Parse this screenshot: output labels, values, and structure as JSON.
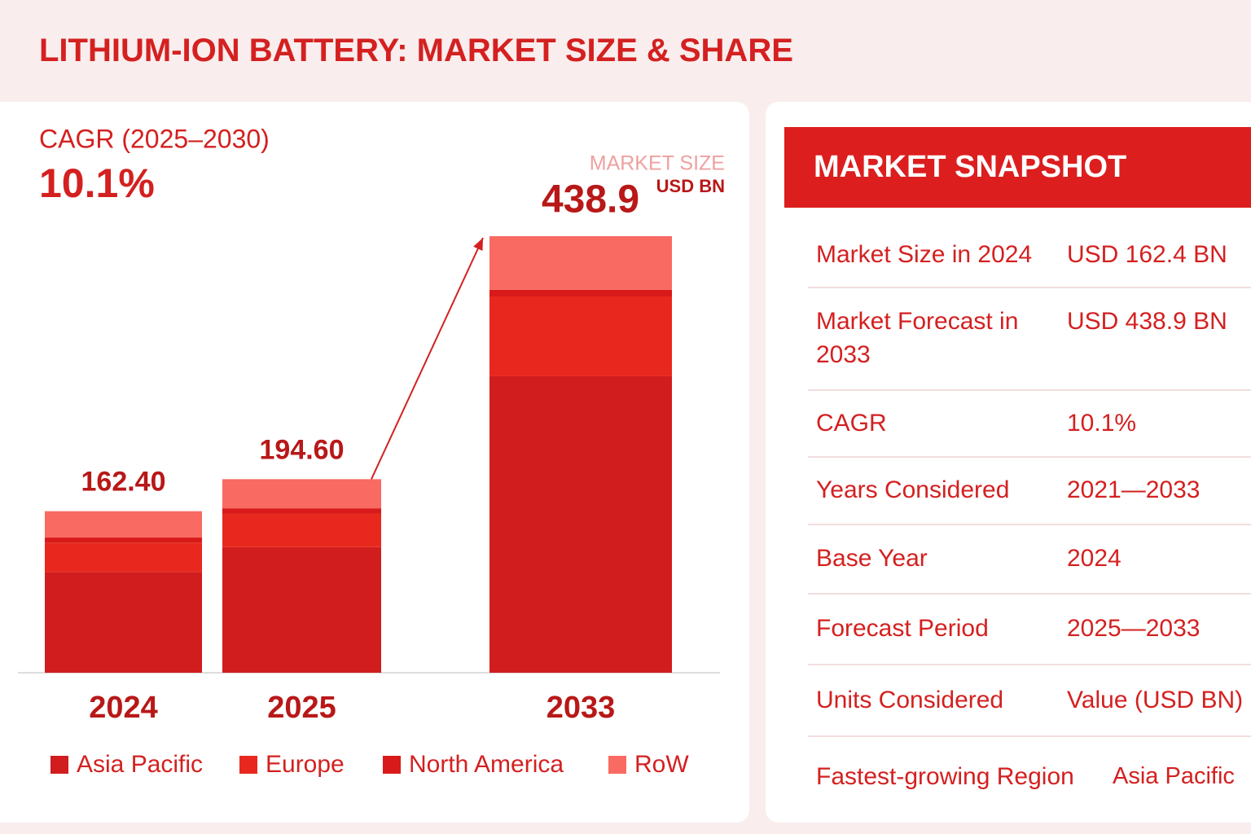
{
  "header": {
    "title": "LITHIUM-ION BATTERY: MARKET SIZE & SHARE"
  },
  "chart_data": {
    "type": "stacked_bar",
    "cagr_label": "CAGR (2025–2030)",
    "cagr": "10.1%",
    "market_size_label": "MARKET SIZE",
    "unit": "USD BN",
    "categories": [
      "2024",
      "2025",
      "2033"
    ],
    "series": [
      {
        "name": "Asia Pacific",
        "color": "#d11d1d",
        "values": [
          101.4,
          126.3,
          298.1
        ]
      },
      {
        "name": "Europe",
        "color": "#e8281f",
        "values": [
          29.4,
          33.8,
          80.2
        ]
      },
      {
        "name": "North America",
        "color": "#d81a1a",
        "values": [
          5.1,
          5.2,
          6.6
        ]
      },
      {
        "name": "RoW",
        "color": "#f86a62",
        "values": [
          26.5,
          29.3,
          54.0
        ]
      }
    ],
    "totals": [
      162.4,
      194.6,
      438.9
    ],
    "total_labels": [
      "162.40",
      "194.60",
      "438.9"
    ]
  },
  "snapshot": {
    "title": "MARKET SNAPSHOT",
    "rows": [
      {
        "label": "Market Size in 2024",
        "value": "USD 162.4 BN"
      },
      {
        "label": "Market Forecast in 2033",
        "value": "USD 438.9 BN"
      },
      {
        "label": "CAGR",
        "value": "10.1%"
      },
      {
        "label": "Years Considered",
        "value": "2021—2033"
      },
      {
        "label": "Base Year",
        "value": "2024"
      },
      {
        "label": "Forecast Period",
        "value": "2025—2033"
      },
      {
        "label": "Units Considered",
        "value": "Value (USD BN)"
      },
      {
        "label": "Fastest-growing Region",
        "value": "Asia Pacific"
      }
    ]
  }
}
